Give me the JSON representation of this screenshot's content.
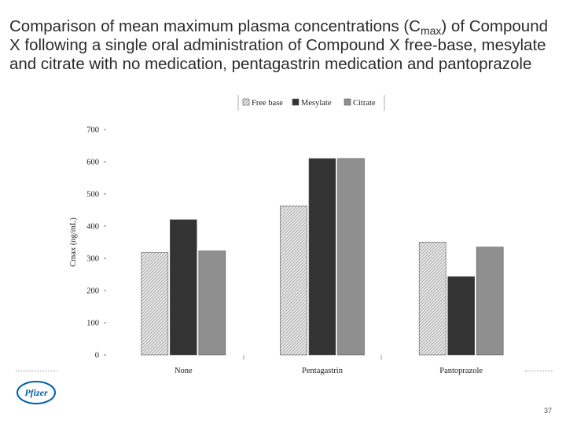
{
  "title": {
    "part1": "Comparison of mean maximum plasma concentrations (C",
    "sub": "max",
    "part2": ") of Compound X following a single oral administration of Compound X free‑base, mesylate and citrate with no medication, pentagastrin medication and pantoprazole"
  },
  "chart_data": {
    "type": "bar",
    "ylabel": "Cmax (ng/mL)",
    "ylim": [
      0,
      700
    ],
    "yticks": [
      0,
      100,
      200,
      300,
      400,
      500,
      600,
      700
    ],
    "grid": false,
    "legend_position": "top",
    "categories": [
      "None",
      "Pentagastrin",
      "Pantoprazole"
    ],
    "series": [
      {
        "name": "Free base",
        "values": [
          318,
          463,
          350
        ],
        "color": "#e4e4e4",
        "pattern": "hatched"
      },
      {
        "name": "Mesylate",
        "values": [
          420,
          610,
          243
        ],
        "color": "#333333",
        "pattern": "solid"
      },
      {
        "name": "Citrate",
        "values": [
          323,
          610,
          335
        ],
        "color": "#8f8f8f",
        "pattern": "solid"
      }
    ]
  },
  "footer": {
    "logo_text": "Pfizer",
    "logo_color": "#0061a8",
    "page_number": "37"
  }
}
